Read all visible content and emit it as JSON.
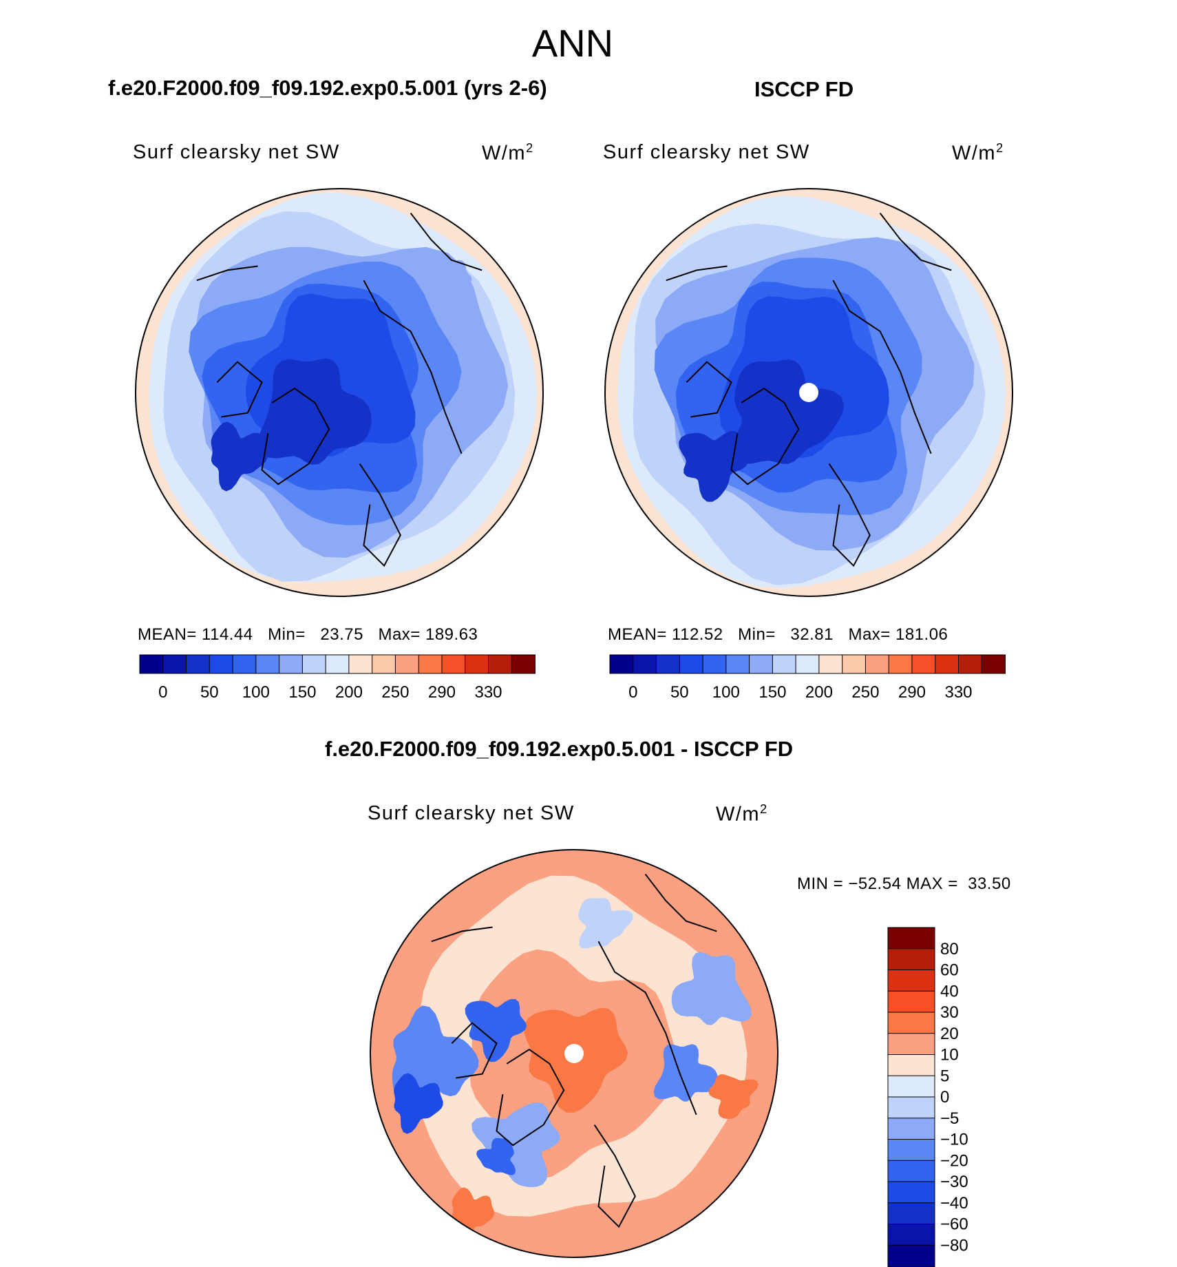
{
  "chart_data": {
    "type": "polar-stereographic contour maps",
    "title": "ANN",
    "panels": [
      {
        "case_title": "f.e20.F2000.f09_f09.192.exp0.5.001 (yrs 2-6)",
        "variable": "Surf clearsky net SW",
        "units": "W/m",
        "units_exp": "2",
        "mean_label": "MEAN=",
        "mean": "114.44",
        "min_label": "Min=",
        "min": "23.75",
        "max_label": "Max=",
        "max": "189.63",
        "colorbar_ticks": [
          "0",
          "50",
          "100",
          "150",
          "200",
          "250",
          "290",
          "330"
        ]
      },
      {
        "case_title": "ISCCP FD",
        "variable": "Surf clearsky net SW",
        "units": "W/m",
        "units_exp": "2",
        "mean_label": "MEAN=",
        "mean": "112.52",
        "min_label": "Min=",
        "min": "32.81",
        "max_label": "Max=",
        "max": "181.06",
        "colorbar_ticks": [
          "0",
          "50",
          "100",
          "150",
          "200",
          "250",
          "290",
          "330"
        ]
      },
      {
        "case_title": "f.e20.F2000.f09_f09.192.exp0.5.001 - ISCCP FD",
        "variable": "Surf clearsky net SW",
        "units": "W/m",
        "units_exp": "2",
        "minmax_label": "MIN = −52.54 MAX =  33.50",
        "min": -52.54,
        "max": 33.5,
        "colorbar_ticks": [
          "80",
          "60",
          "40",
          "30",
          "20",
          "10",
          "5",
          "0",
          "−5",
          "−10",
          "−20",
          "−30",
          "−40",
          "−60",
          "−80"
        ]
      }
    ],
    "abs_colors": [
      "#00008c",
      "#0a14aa",
      "#1432c8",
      "#1e4be6",
      "#3264f0",
      "#5a87f5",
      "#8caaf5",
      "#bed2fa",
      "#dceafc",
      "#fde4d2",
      "#fcc8aa",
      "#fca082",
      "#fa7846",
      "#f55028",
      "#dc3214",
      "#b41e0a",
      "#780000"
    ],
    "diff_colors": [
      "#780000",
      "#b41e0a",
      "#dc3214",
      "#fa5028",
      "#fa7846",
      "#fca082",
      "#fde4d2",
      "#dceafc",
      "#bed2fa",
      "#8caaf5",
      "#5a87f5",
      "#3264f0",
      "#1e4be6",
      "#1432c8",
      "#0a14aa",
      "#00008c"
    ]
  }
}
